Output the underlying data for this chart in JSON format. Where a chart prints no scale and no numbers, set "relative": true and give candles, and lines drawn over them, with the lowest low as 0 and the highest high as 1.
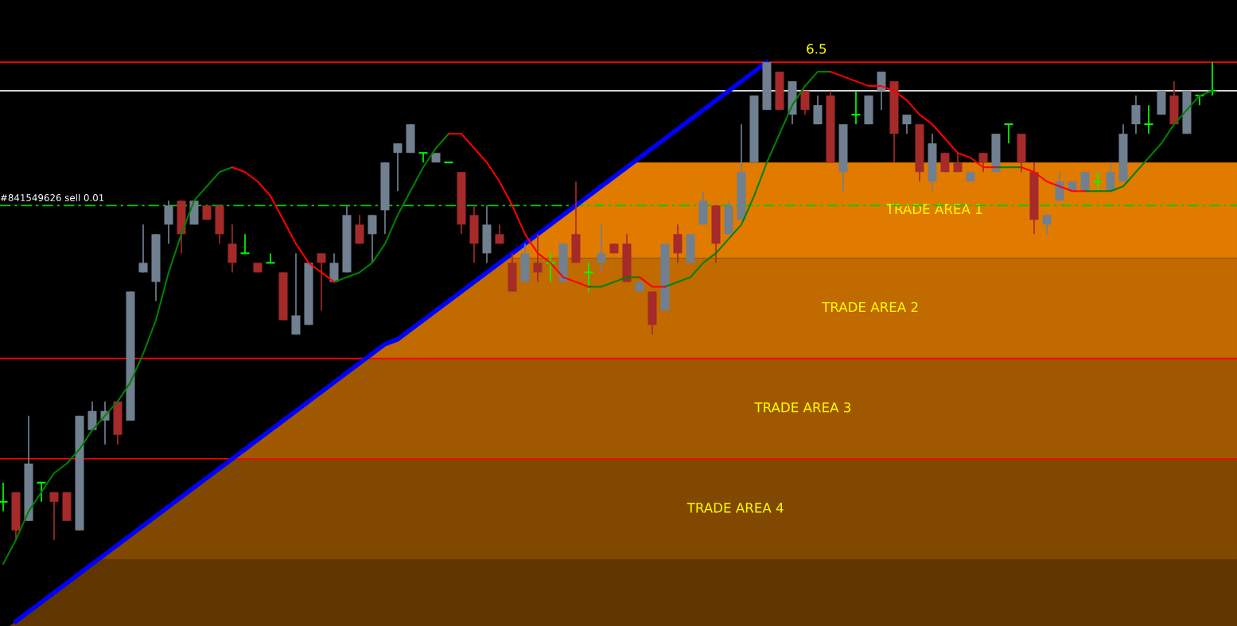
{
  "chart_data": {
    "type": "candlestick",
    "relative": true,
    "categories": [
      null,
      null,
      null,
      null,
      null,
      null,
      null,
      null,
      null,
      null,
      null,
      null,
      null,
      null,
      null,
      null,
      null,
      null,
      null,
      null,
      null,
      null,
      null,
      null,
      null,
      null,
      null,
      null,
      null,
      null,
      null,
      null,
      null,
      null,
      null,
      null,
      null,
      null,
      null,
      null,
      null,
      null,
      null,
      null,
      null,
      null,
      null,
      null,
      null,
      null,
      null,
      null,
      null,
      null,
      null,
      null,
      null,
      null,
      null,
      null,
      null,
      null,
      null,
      null,
      null,
      null,
      null,
      null,
      null,
      null,
      null,
      null,
      null,
      null,
      null,
      null,
      null,
      null,
      null,
      null,
      null,
      null,
      null,
      null,
      null,
      null,
      null,
      null,
      null,
      null,
      null,
      null,
      null,
      null,
      null,
      null
    ],
    "ohlc": [
      [
        0.08,
        0.12,
        0.06,
        0.08
      ],
      [
        0.1,
        0.1,
        0.0,
        0.02
      ],
      [
        0.04,
        0.26,
        0.04,
        0.16
      ],
      [
        0.12,
        0.12,
        0.08,
        0.12
      ],
      [
        0.1,
        0.1,
        0.0,
        0.08
      ],
      [
        0.1,
        0.1,
        0.04,
        0.04
      ],
      [
        0.02,
        0.26,
        0.02,
        0.26
      ],
      [
        0.23,
        0.29,
        0.23,
        0.27
      ],
      [
        0.25,
        0.29,
        0.2,
        0.27
      ],
      [
        0.29,
        0.29,
        0.2,
        0.22
      ],
      [
        0.25,
        0.52,
        0.25,
        0.52
      ],
      [
        0.56,
        0.66,
        0.56,
        0.58
      ],
      [
        0.54,
        0.64,
        0.5,
        0.64
      ],
      [
        0.66,
        0.71,
        0.62,
        0.7
      ],
      [
        0.71,
        0.71,
        0.6,
        0.64
      ],
      [
        0.66,
        0.71,
        0.66,
        0.71
      ],
      [
        0.7,
        0.7,
        0.67,
        0.67
      ],
      [
        0.7,
        0.7,
        0.62,
        0.64
      ],
      [
        0.62,
        0.66,
        0.56,
        0.58
      ],
      [
        0.6,
        0.64,
        0.6,
        0.6
      ],
      [
        0.58,
        0.58,
        0.56,
        0.56
      ],
      [
        0.58,
        0.6,
        0.58,
        0.58
      ],
      [
        0.56,
        0.56,
        0.46,
        0.46
      ],
      [
        0.43,
        0.6,
        0.43,
        0.47
      ],
      [
        0.45,
        0.58,
        0.45,
        0.58
      ],
      [
        0.6,
        0.6,
        0.48,
        0.58
      ],
      [
        0.54,
        0.6,
        0.54,
        0.58
      ],
      [
        0.56,
        0.7,
        0.56,
        0.68
      ],
      [
        0.66,
        0.68,
        0.62,
        0.62
      ],
      [
        0.64,
        0.68,
        0.58,
        0.68
      ],
      [
        0.69,
        0.79,
        0.64,
        0.79
      ],
      [
        0.81,
        0.83,
        0.73,
        0.83
      ],
      [
        0.81,
        0.87,
        0.81,
        0.87
      ],
      [
        0.81,
        0.81,
        0.79,
        0.81
      ],
      [
        0.79,
        0.81,
        0.79,
        0.81
      ],
      [
        0.79,
        0.79,
        0.79,
        0.79
      ],
      [
        0.77,
        0.77,
        0.64,
        0.66
      ],
      [
        0.68,
        0.7,
        0.58,
        0.62
      ],
      [
        0.6,
        0.7,
        0.58,
        0.66
      ],
      [
        0.64,
        0.66,
        0.62,
        0.62
      ],
      [
        0.58,
        0.6,
        0.52,
        0.52
      ],
      [
        0.54,
        0.62,
        0.54,
        0.6
      ],
      [
        0.58,
        0.64,
        0.54,
        0.56
      ],
      [
        0.58,
        0.6,
        0.54,
        0.58
      ],
      [
        0.54,
        0.62,
        0.54,
        0.62
      ],
      [
        0.64,
        0.75,
        0.58,
        0.58
      ],
      [
        0.56,
        0.58,
        0.52,
        0.56
      ],
      [
        0.58,
        0.66,
        0.56,
        0.6
      ],
      [
        0.62,
        0.62,
        0.6,
        0.6
      ],
      [
        0.62,
        0.64,
        0.54,
        0.54
      ],
      [
        0.52,
        0.54,
        0.52,
        0.54
      ],
      [
        0.52,
        0.52,
        0.43,
        0.45
      ],
      [
        0.48,
        0.62,
        0.48,
        0.62
      ],
      [
        0.64,
        0.66,
        0.58,
        0.6
      ],
      [
        0.58,
        0.64,
        0.58,
        0.64
      ],
      [
        0.66,
        0.73,
        0.66,
        0.71
      ],
      [
        0.7,
        0.7,
        0.58,
        0.62
      ],
      [
        0.64,
        0.71,
        0.64,
        0.7
      ],
      [
        0.67,
        0.87,
        0.67,
        0.77
      ],
      [
        0.79,
        0.93,
        0.79,
        0.93
      ],
      [
        0.9,
        1.0,
        0.9,
        1.0
      ],
      [
        0.98,
        0.98,
        0.9,
        0.9
      ],
      [
        0.89,
        0.96,
        0.87,
        0.96
      ],
      [
        0.94,
        0.94,
        0.89,
        0.9
      ],
      [
        0.87,
        0.93,
        0.87,
        0.91
      ],
      [
        0.93,
        0.94,
        0.79,
        0.79
      ],
      [
        0.77,
        0.87,
        0.73,
        0.87
      ],
      [
        0.89,
        0.94,
        0.87,
        0.89
      ],
      [
        0.87,
        0.93,
        0.87,
        0.93
      ],
      [
        0.94,
        0.98,
        0.9,
        0.98
      ],
      [
        0.96,
        0.96,
        0.79,
        0.85
      ],
      [
        0.87,
        0.89,
        0.85,
        0.89
      ],
      [
        0.87,
        0.87,
        0.75,
        0.77
      ],
      [
        0.75,
        0.85,
        0.73,
        0.83
      ],
      [
        0.81,
        0.81,
        0.77,
        0.77
      ],
      [
        0.79,
        0.81,
        0.77,
        0.77
      ],
      [
        0.75,
        0.77,
        0.75,
        0.77
      ],
      [
        0.81,
        0.81,
        0.77,
        0.79
      ],
      [
        0.77,
        0.85,
        0.77,
        0.85
      ],
      [
        0.87,
        0.87,
        0.83,
        0.87
      ],
      [
        0.85,
        0.85,
        0.77,
        0.79
      ],
      [
        0.77,
        0.79,
        0.64,
        0.67
      ],
      [
        0.66,
        0.68,
        0.64,
        0.68
      ],
      [
        0.71,
        0.77,
        0.71,
        0.75
      ],
      [
        0.73,
        0.75,
        0.73,
        0.75
      ],
      [
        0.73,
        0.77,
        0.73,
        0.77
      ],
      [
        0.75,
        0.77,
        0.73,
        0.75
      ],
      [
        0.73,
        0.79,
        0.73,
        0.77
      ],
      [
        0.75,
        0.87,
        0.75,
        0.85
      ],
      [
        0.87,
        0.93,
        0.85,
        0.91
      ],
      [
        0.87,
        0.91,
        0.85,
        0.87
      ],
      [
        0.89,
        0.94,
        0.89,
        0.94
      ],
      [
        0.93,
        0.96,
        0.87,
        0.87
      ],
      [
        0.85,
        0.94,
        0.85,
        0.94
      ],
      [
        0.93,
        0.93,
        0.91,
        0.93
      ],
      [
        0.94,
        1.0,
        0.93,
        0.94
      ]
    ],
    "colors": [
      "#00ff00",
      "#a52a2a",
      "#708090",
      "#00ff00",
      "#a52a2a",
      "#a52a2a",
      "#708090",
      "#708090",
      "#708090",
      "#a52a2a",
      "#708090",
      "#708090",
      "#708090",
      "#708090",
      "#a52a2a",
      "#708090",
      "#a52a2a",
      "#a52a2a",
      "#a52a2a",
      "#00ff00",
      "#a52a2a",
      "#00ff00",
      "#a52a2a",
      "#708090",
      "#708090",
      "#a52a2a",
      "#708090",
      "#708090",
      "#a52a2a",
      "#708090",
      "#708090",
      "#708090",
      "#708090",
      "#00ff00",
      "#708090",
      "#00ff00",
      "#a52a2a",
      "#a52a2a",
      "#708090",
      "#a52a2a",
      "#a52a2a",
      "#708090",
      "#a52a2a",
      "#00ff00",
      "#708090",
      "#a52a2a",
      "#00ff00",
      "#708090",
      "#a52a2a",
      "#a52a2a",
      "#708090",
      "#a52a2a",
      "#708090",
      "#a52a2a",
      "#708090",
      "#708090",
      "#a52a2a",
      "#708090",
      "#708090",
      "#708090",
      "#708090",
      "#a52a2a",
      "#708090",
      "#a52a2a",
      "#708090",
      "#a52a2a",
      "#708090",
      "#00ff00",
      "#708090",
      "#708090",
      "#a52a2a",
      "#708090",
      "#a52a2a",
      "#708090",
      "#a52a2a",
      "#a52a2a",
      "#708090",
      "#a52a2a",
      "#708090",
      "#00ff00",
      "#a52a2a",
      "#a52a2a",
      "#708090",
      "#708090",
      "#708090",
      "#708090",
      "#00ff00",
      "#708090",
      "#708090",
      "#708090",
      "#00ff00",
      "#708090",
      "#a52a2a",
      "#708090",
      "#00ff00",
      "#00ff00"
    ],
    "series": [
      {
        "type": "line",
        "color": "#008000",
        "values": [
          -0.05,
          0.0,
          0.06,
          0.1,
          0.14,
          0.16,
          0.19,
          0.23,
          0.26,
          0.29,
          0.33,
          0.39,
          0.46,
          0.56,
          0.64,
          0.71,
          0.74,
          0.77,
          0.78,
          null,
          null,
          null,
          null,
          null,
          null,
          null,
          0.54,
          0.55,
          0.56,
          0.58,
          0.62,
          0.68,
          0.73,
          0.78,
          0.82,
          0.85,
          null,
          null,
          null,
          null,
          null,
          null,
          null,
          null,
          null,
          null,
          0.53,
          0.53,
          0.54,
          0.55,
          0.55,
          null,
          0.53,
          0.54,
          0.55,
          0.58,
          0.6,
          0.63,
          0.66,
          0.72,
          0.79,
          0.85,
          0.91,
          0.95,
          0.98,
          0.98,
          null,
          null,
          null,
          null,
          null,
          null,
          null,
          null,
          null,
          null,
          null,
          null,
          0.78,
          0.78,
          0.78,
          null,
          null,
          null,
          null,
          0.73,
          0.73,
          0.73,
          0.74,
          0.77,
          0.8,
          0.83,
          0.87,
          0.9,
          0.93,
          0.94
        ]
      },
      {
        "type": "line",
        "color": "#ff0000",
        "values": [
          null,
          null,
          null,
          null,
          null,
          null,
          null,
          null,
          null,
          null,
          null,
          null,
          null,
          null,
          null,
          null,
          null,
          null,
          0.78,
          0.77,
          0.75,
          0.72,
          0.67,
          0.62,
          0.58,
          0.56,
          0.54,
          null,
          null,
          null,
          null,
          null,
          null,
          null,
          null,
          0.85,
          0.85,
          0.82,
          0.79,
          0.75,
          0.7,
          0.64,
          0.6,
          0.58,
          0.55,
          0.54,
          0.53,
          null,
          null,
          null,
          0.55,
          0.53,
          0.53,
          null,
          null,
          null,
          null,
          null,
          null,
          null,
          null,
          null,
          null,
          null,
          null,
          0.98,
          0.97,
          0.96,
          0.95,
          0.95,
          0.94,
          0.92,
          0.89,
          0.87,
          0.84,
          0.81,
          0.8,
          0.78,
          0.78,
          null,
          0.78,
          0.77,
          0.75,
          0.74,
          0.73,
          0.73,
          null,
          null,
          null,
          null,
          null,
          null,
          null,
          null,
          null,
          null
        ]
      },
      {
        "type": "line",
        "color": "#0000ff",
        "values": [
          null,
          -0.17,
          -0.15,
          -0.13,
          -0.11,
          -0.09,
          -0.07,
          -0.05,
          -0.03,
          -0.01,
          0.01,
          0.03,
          0.05,
          0.07,
          0.09,
          0.11,
          0.13,
          0.15,
          0.17,
          0.19,
          0.21,
          0.23,
          0.25,
          0.27,
          0.29,
          0.31,
          0.33,
          0.35,
          0.37,
          0.39,
          0.41,
          0.42,
          0.44,
          0.46,
          0.48,
          0.5,
          0.52,
          0.54,
          0.56,
          0.58,
          0.6,
          0.62,
          0.64,
          0.66,
          0.68,
          0.7,
          0.72,
          0.74,
          0.76,
          0.78,
          0.8,
          0.82,
          0.84,
          0.86,
          0.88,
          0.9,
          0.92,
          0.94,
          0.96,
          0.98,
          1.0,
          null,
          null,
          null,
          null,
          null,
          null,
          null,
          null,
          null,
          null,
          null,
          null,
          null,
          null,
          null,
          null,
          null,
          null,
          null,
          null,
          null,
          null,
          null,
          null,
          null,
          null,
          null,
          null,
          null,
          null,
          null,
          null,
          null,
          null,
          null
        ]
      }
    ],
    "annotations": [
      {
        "text": "6.5",
        "y": 1.0
      }
    ],
    "bands": [
      {
        "axis": "y",
        "from": 0.59,
        "to": 0.79,
        "label": "TRADE AREA 1",
        "color": "#e07b00"
      },
      {
        "axis": "y",
        "from": 0.38,
        "to": 0.59,
        "label": "TRADE AREA 2",
        "color": "#c06a00"
      },
      {
        "axis": "y",
        "from": 0.17,
        "to": 0.38,
        "label": "TRADE AREA 3",
        "color": "#a05800"
      },
      {
        "axis": "y",
        "from": -0.04,
        "to": 0.17,
        "label": "TRADE AREA 4",
        "color": "#804800"
      },
      {
        "axis": "y",
        "from": -0.18,
        "to": -0.04,
        "color": "#603600"
      }
    ],
    "ref_lines": [
      {
        "axis": "y",
        "value": 1.0,
        "color": "#ff0000"
      },
      {
        "axis": "y",
        "value": 0.94,
        "color": "#ffffff"
      },
      {
        "axis": "y",
        "value": 0.7,
        "label": "#841549626 sell 0.01",
        "color": "#00cc00",
        "line_style": "dashed"
      },
      {
        "axis": "y",
        "value": 0.38,
        "color": "#ff0000"
      },
      {
        "axis": "y",
        "value": 0.17,
        "color": "#ff0000"
      }
    ]
  }
}
